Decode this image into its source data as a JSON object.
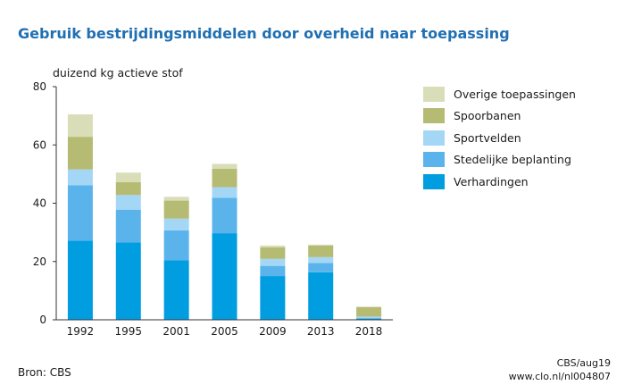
{
  "chart_data": {
    "type": "bar",
    "stacked": true,
    "title": "Gebruik bestrijdingsmiddelen door overheid naar toepassing",
    "ylabel": "duizend kg actieve stof",
    "xlabel": "",
    "ylim": [
      0,
      80
    ],
    "yticks": [
      0,
      20,
      40,
      60,
      80
    ],
    "grid": false,
    "legend_position": "right",
    "categories": [
      "1992",
      "1995",
      "2001",
      "2005",
      "2009",
      "2013",
      "2018"
    ],
    "series": [
      {
        "name": "Verhardingen",
        "color": "#009de0",
        "values": [
          27.2,
          26.6,
          20.4,
          29.7,
          15.0,
          16.3,
          0.3
        ]
      },
      {
        "name": "Stedelijke beplanting",
        "color": "#5ab4eb",
        "values": [
          19.0,
          11.2,
          10.3,
          12.2,
          3.5,
          3.2,
          0.3
        ]
      },
      {
        "name": "Sportvelden",
        "color": "#a4d7f6",
        "values": [
          5.4,
          5.0,
          4.0,
          3.6,
          2.4,
          2.0,
          0.5
        ]
      },
      {
        "name": "Spoorbanen",
        "color": "#b6bb73",
        "values": [
          11.2,
          4.4,
          6.2,
          6.3,
          4.0,
          4.0,
          3.3
        ]
      },
      {
        "name": "Overige toepassingen",
        "color": "#d9deb9",
        "values": [
          7.7,
          3.3,
          1.3,
          1.7,
          0.6,
          0.3,
          0.1
        ]
      }
    ]
  },
  "legend_order": [
    4,
    3,
    2,
    1,
    0
  ],
  "footer": {
    "source": "Bron: CBS",
    "credit_line1": "CBS/aug19",
    "credit_line2": "www.clo.nl/nl004807"
  }
}
